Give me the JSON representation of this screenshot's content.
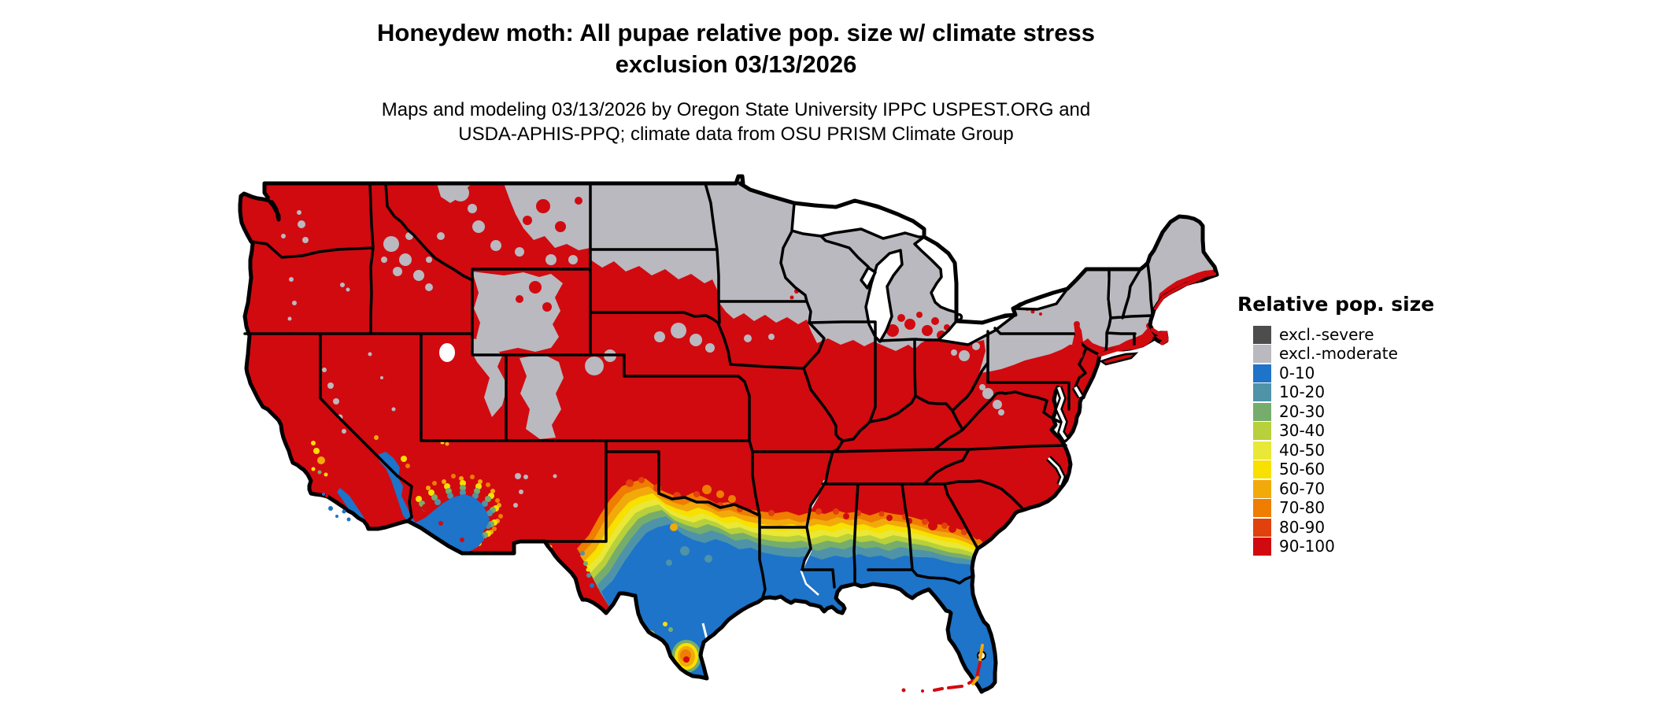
{
  "title": {
    "line1": "Honeydew moth: All pupae relative pop. size w/ climate stress",
    "line2": "exclusion 03/13/2026"
  },
  "subtitle": {
    "line1": "Maps and modeling 03/13/2026 by Oregon State University IPPC USPEST.ORG and",
    "line2": "USDA-APHIS-PPQ; climate data from OSU PRISM Climate Group"
  },
  "legend": {
    "title": "Relative pop. size",
    "items": [
      {
        "label": "excl.-severe",
        "color": "#4d4d4d"
      },
      {
        "label": "excl.-moderate",
        "color": "#b9b9bf"
      },
      {
        "label": "0-10",
        "color": "#1d74c9"
      },
      {
        "label": "10-20",
        "color": "#4e93a8"
      },
      {
        "label": "20-30",
        "color": "#76ad6c"
      },
      {
        "label": "30-40",
        "color": "#b8d03b"
      },
      {
        "label": "40-50",
        "color": "#e9e838"
      },
      {
        "label": "50-60",
        "color": "#f8e000"
      },
      {
        "label": "60-70",
        "color": "#f2a90a"
      },
      {
        "label": "70-80",
        "color": "#ee7d00"
      },
      {
        "label": "80-90",
        "color": "#e1410d"
      },
      {
        "label": "90-100",
        "color": "#d10a10"
      }
    ]
  },
  "colors": {
    "excl_severe": "#4d4d4d",
    "excl_moderate": "#b9b9bf",
    "v0_10": "#1d74c9",
    "v10_20": "#4e93a8",
    "v20_30": "#76ad6c",
    "v30_40": "#b8d03b",
    "v40_50": "#e9e838",
    "v50_60": "#f8e000",
    "v60_70": "#f2a90a",
    "v70_80": "#ee7d00",
    "v80_90": "#e1410d",
    "v90_100": "#d10a10",
    "outline": "#000000",
    "water": "#ffffff",
    "background": "#ffffff"
  },
  "chart_data": {
    "type": "heatmap",
    "subtype": "us-conus-risk-map",
    "title": "Honeydew moth: All pupae relative pop. size w/ climate stress exclusion 03/13/2026",
    "legend_title": "Relative pop. size",
    "classes": [
      "excl.-severe",
      "excl.-moderate",
      "0-10",
      "10-20",
      "20-30",
      "30-40",
      "40-50",
      "50-60",
      "60-70",
      "70-80",
      "80-90",
      "90-100"
    ],
    "legend_position": "right",
    "state_dominant_class": [
      {
        "state": "WA",
        "class": "90-100"
      },
      {
        "state": "OR",
        "class": "90-100"
      },
      {
        "state": "CA",
        "class": "90-100",
        "secondary": "0-10 south coast / deserts"
      },
      {
        "state": "NV",
        "class": "90-100"
      },
      {
        "state": "ID",
        "class": "90-100",
        "secondary": "excl.-moderate mountain patches"
      },
      {
        "state": "MT",
        "class": "90-100",
        "secondary": "excl.-moderate north/east"
      },
      {
        "state": "WY",
        "class": "excl.-moderate",
        "secondary": "90-100 east"
      },
      {
        "state": "UT",
        "class": "90-100",
        "secondary": "excl.-moderate mountains"
      },
      {
        "state": "CO",
        "class": "90-100",
        "secondary": "excl.-moderate Rockies spine"
      },
      {
        "state": "AZ",
        "class": "90-100",
        "secondary": "0-10 southwest deserts"
      },
      {
        "state": "NM",
        "class": "90-100"
      },
      {
        "state": "ND",
        "class": "excl.-moderate"
      },
      {
        "state": "SD",
        "class": "excl.-moderate",
        "secondary": "90-100 patches south/west"
      },
      {
        "state": "NE",
        "class": "mixed excl.-moderate / 90-100"
      },
      {
        "state": "KS",
        "class": "90-100"
      },
      {
        "state": "OK",
        "class": "90-100",
        "secondary": "60-80 along Red River"
      },
      {
        "state": "TX",
        "class": "gradient 90-100 north to 0-10 south"
      },
      {
        "state": "MN",
        "class": "excl.-moderate"
      },
      {
        "state": "WI",
        "class": "excl.-moderate"
      },
      {
        "state": "MI",
        "class": "excl.-moderate",
        "secondary": "90-100 southern fringe"
      },
      {
        "state": "IA",
        "class": "excl.-moderate",
        "secondary": "90-100 south"
      },
      {
        "state": "MO",
        "class": "90-100"
      },
      {
        "state": "AR",
        "class": "90-100"
      },
      {
        "state": "LA",
        "class": "90-100 north",
        "secondary": "0-10 south"
      },
      {
        "state": "IL",
        "class": "90-100",
        "secondary": "excl.-moderate north strip"
      },
      {
        "state": "IN",
        "class": "90-100",
        "secondary": "excl.-moderate north strip"
      },
      {
        "state": "OH",
        "class": "90-100",
        "secondary": "excl.-moderate NE patches"
      },
      {
        "state": "KY",
        "class": "90-100"
      },
      {
        "state": "TN",
        "class": "90-100"
      },
      {
        "state": "MS",
        "class": "gradient 90-100 north to 0-10 coast"
      },
      {
        "state": "AL",
        "class": "gradient 90-100 north to 0-10 coast"
      },
      {
        "state": "GA",
        "class": "gradient 90-100 north to 0-10 south"
      },
      {
        "state": "FL",
        "class": "0-10",
        "secondary": "60-100 Miami / Keys fringe"
      },
      {
        "state": "SC",
        "class": "90-100"
      },
      {
        "state": "NC",
        "class": "90-100"
      },
      {
        "state": "VA",
        "class": "90-100"
      },
      {
        "state": "WV",
        "class": "90-100",
        "secondary": "excl.-moderate patches"
      },
      {
        "state": "MD",
        "class": "90-100"
      },
      {
        "state": "DE",
        "class": "90-100"
      },
      {
        "state": "NJ",
        "class": "90-100"
      },
      {
        "state": "PA",
        "class": "excl.-moderate",
        "secondary": "90-100 south/southeast"
      },
      {
        "state": "NY",
        "class": "excl.-moderate",
        "secondary": "90-100 Hudson valley / Long Island"
      },
      {
        "state": "CT",
        "class": "excl.-moderate",
        "secondary": "90-100 coast"
      },
      {
        "state": "RI",
        "class": "excl.-moderate",
        "secondary": "90-100 coast"
      },
      {
        "state": "MA",
        "class": "excl.-moderate",
        "secondary": "90-100 coast / Cape Cod"
      },
      {
        "state": "VT",
        "class": "excl.-moderate"
      },
      {
        "state": "NH",
        "class": "excl.-moderate"
      },
      {
        "state": "ME",
        "class": "excl.-moderate",
        "secondary": "90-100 coastal fringe"
      }
    ]
  }
}
